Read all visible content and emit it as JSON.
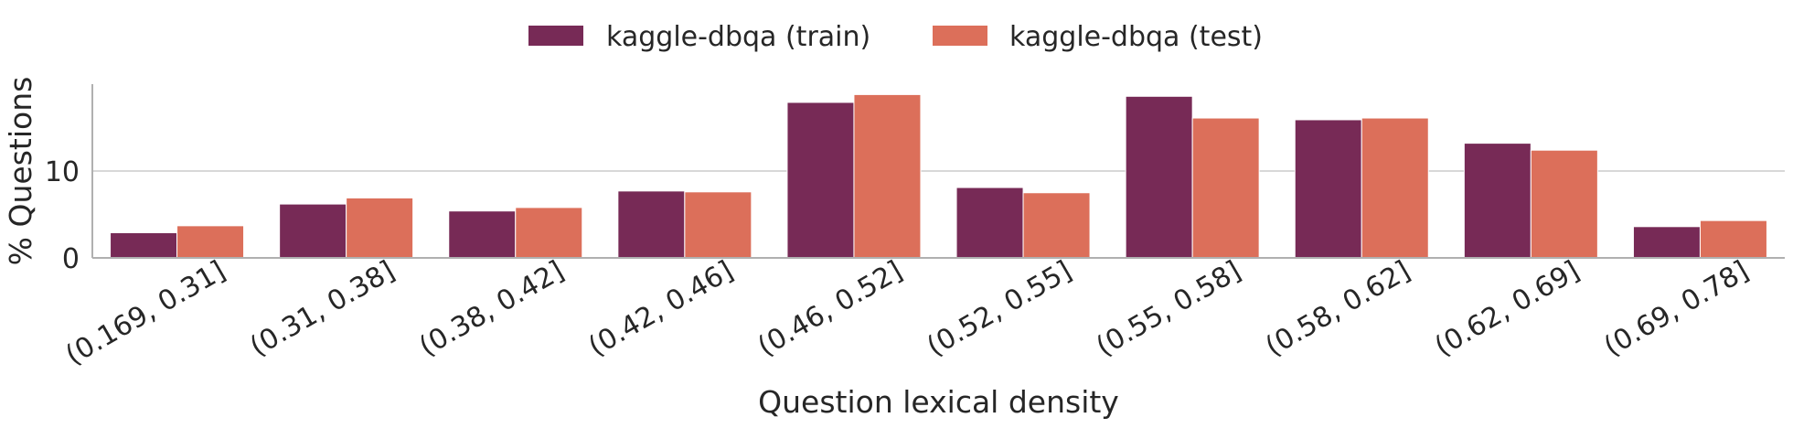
{
  "chart_data": {
    "type": "bar",
    "title": "",
    "xlabel": "Question lexical density",
    "ylabel": "% Questions",
    "categories": [
      "(0.169, 0.31]",
      "(0.31, 0.38]",
      "(0.38, 0.42]",
      "(0.42, 0.46]",
      "(0.46, 0.52]",
      "(0.52, 0.55]",
      "(0.55, 0.58]",
      "(0.58, 0.62]",
      "(0.62, 0.69]",
      "(0.69, 0.78]"
    ],
    "series": [
      {
        "name": "kaggle-dbqa (train)",
        "color": "#772a56",
        "values": [
          2.9,
          6.2,
          5.4,
          7.7,
          17.9,
          8.1,
          18.6,
          15.9,
          13.2,
          3.6
        ]
      },
      {
        "name": "kaggle-dbqa (test)",
        "color": "#dc6f5a",
        "values": [
          3.7,
          6.9,
          5.8,
          7.6,
          18.8,
          7.5,
          16.1,
          16.1,
          12.4,
          4.3
        ]
      }
    ],
    "yticks": [
      0,
      10
    ],
    "ylim": [
      0,
      20
    ],
    "grid": "horizontal",
    "legend": "top-center"
  }
}
